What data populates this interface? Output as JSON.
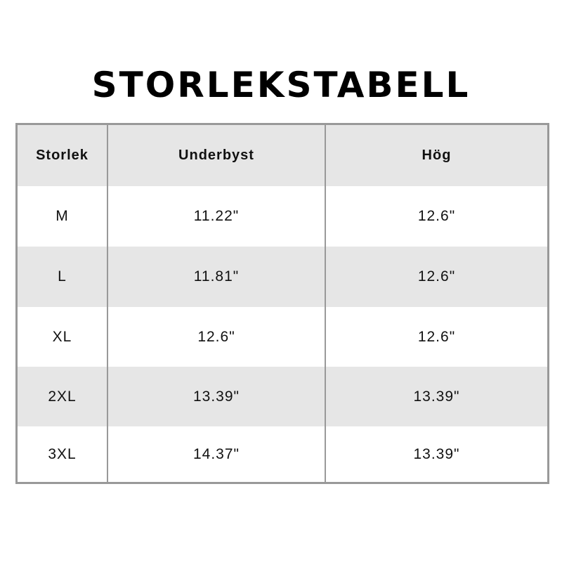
{
  "title": "STORLEKSTABELL",
  "colors": {
    "border": "#999999",
    "stripe": "#e6e6e6"
  },
  "table": {
    "headers": [
      "Storlek",
      "Underbyst",
      "Hög"
    ],
    "rows": [
      [
        "M",
        "11.22\"",
        "12.6\""
      ],
      [
        "L",
        "11.81\"",
        "12.6\""
      ],
      [
        "XL",
        "12.6\"",
        "12.6\""
      ],
      [
        "2XL",
        "13.39\"",
        "13.39\""
      ],
      [
        "3XL",
        "14.37\"",
        "13.39\""
      ]
    ]
  }
}
